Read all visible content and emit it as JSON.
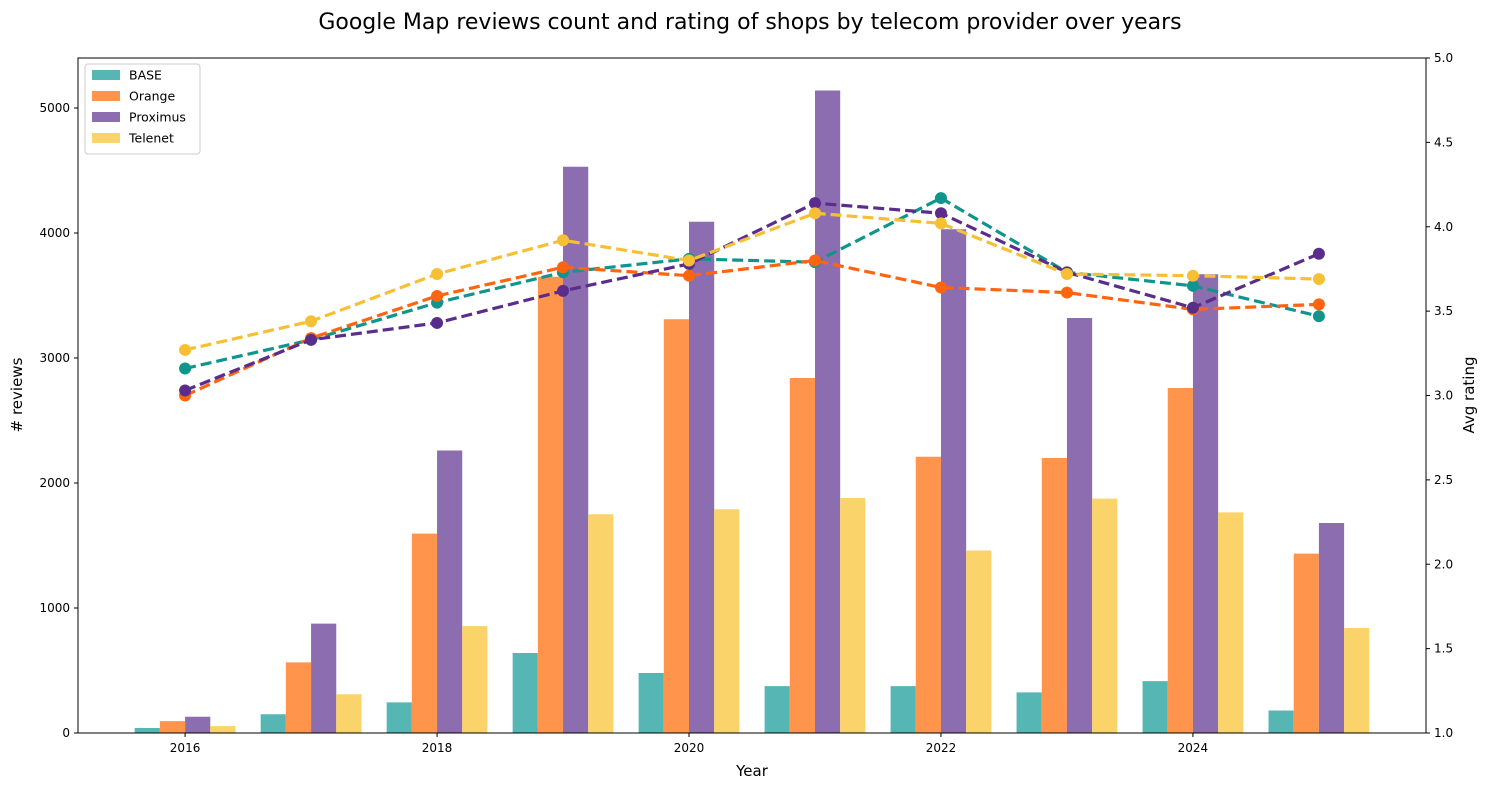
{
  "chart_data": {
    "type": "bar",
    "title": "Google Map reviews count and rating of shops by telecom provider over years",
    "xlabel": "Year",
    "ylabel": "# reviews",
    "y2label": "Avg rating",
    "x_values": [
      2016,
      2017,
      2018,
      2019,
      2020,
      2021,
      2022,
      2023,
      2024,
      2025
    ],
    "x_ticks": [
      "2016",
      "2018",
      "2020",
      "2022",
      "2024"
    ],
    "xlim": [
      2015.15,
      2025.85
    ],
    "ylim": [
      0,
      5400
    ],
    "y_ticks": [
      "0",
      "1000",
      "2000",
      "3000",
      "4000",
      "5000"
    ],
    "y2lim": [
      1.0,
      5.0
    ],
    "y2_ticks": [
      "1.0",
      "1.5",
      "2.0",
      "2.5",
      "3.0",
      "3.5",
      "4.0",
      "4.5",
      "5.0"
    ],
    "grid": false,
    "legend_position": "top-left",
    "series": [
      {
        "name": "BASE",
        "bar_color": "#56b6b4",
        "line_color": "#0f958c",
        "counts": [
          40,
          150,
          245,
          640,
          480,
          375,
          375,
          325,
          415,
          180
        ],
        "ratings": [
          3.16,
          3.33,
          3.55,
          3.73,
          3.81,
          3.79,
          4.17,
          3.73,
          3.65,
          3.47
        ]
      },
      {
        "name": "Orange",
        "bar_color": "#ff944d",
        "line_color": "#ff6410",
        "counts": [
          95,
          565,
          1595,
          3650,
          3310,
          2840,
          2210,
          2200,
          2760,
          1435
        ],
        "ratings": [
          3.0,
          3.34,
          3.59,
          3.76,
          3.71,
          3.8,
          3.64,
          3.61,
          3.51,
          3.54
        ]
      },
      {
        "name": "Proximus",
        "bar_color": "#8c6db0",
        "line_color": "#5a2d8d",
        "counts": [
          130,
          875,
          2260,
          4530,
          4090,
          5140,
          4030,
          3320,
          3670,
          1680
        ],
        "ratings": [
          3.03,
          3.33,
          3.43,
          3.62,
          3.78,
          4.14,
          4.08,
          3.73,
          3.52,
          3.84
        ]
      },
      {
        "name": "Telenet",
        "bar_color": "#fad36b",
        "line_color": "#f7c034",
        "counts": [
          55,
          310,
          855,
          1750,
          1790,
          1880,
          1460,
          1875,
          1765,
          840
        ],
        "ratings": [
          3.27,
          3.44,
          3.72,
          3.92,
          3.8,
          4.08,
          4.02,
          3.72,
          3.71,
          3.69
        ]
      }
    ]
  }
}
